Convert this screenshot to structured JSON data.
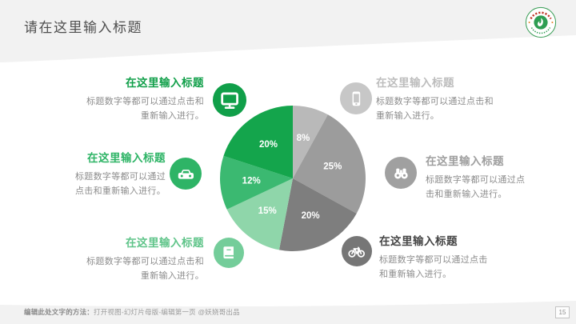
{
  "slide": {
    "title": "请在这里输入标题",
    "page_number": "15"
  },
  "footer": {
    "method_label": "编辑此处文字的方法：",
    "instructions": "打开视图-幻灯片母版-编辑第一页 @妖娆哥出品"
  },
  "theme": {
    "header_band_color": "#f2f2f2",
    "accent_green": "#14a54c",
    "body_text_color": "#8c8c8c"
  },
  "left_items": [
    {
      "title": "在这里输入标题",
      "line1": "标题数字等都可以通过点击和",
      "line2": "重新输入进行。",
      "icon": "monitor-icon",
      "title_color": "#109f49",
      "icon_color": "#109f49"
    },
    {
      "title": "在这里输入标题",
      "line1": "标题数字等都可以通过",
      "line2": "点击和重新输入进行。",
      "icon": "car-icon",
      "title_color": "#2eb466",
      "icon_color": "#2eb466"
    },
    {
      "title": "在这里输入标题",
      "line1": "标题数字等都可以通过点击和",
      "line2": "重新输入进行。",
      "icon": "book-icon",
      "title_color": "#5fc489",
      "icon_color": "#74cd9a"
    }
  ],
  "right_items": [
    {
      "title": "在这里输入标题",
      "line1": "标题数字等都可以通过点击和",
      "line2": "重新输入进行。",
      "icon": "smartphone-icon",
      "title_color": "#bdbdbd",
      "icon_color": "#c7c7c7"
    },
    {
      "title": "在这里输入标题",
      "line1": "标题数字等都可以通过点",
      "line2": "击和重新输入进行。",
      "icon": "binoculars-icon",
      "title_color": "#9e9e9e",
      "icon_color": "#a0a0a0"
    },
    {
      "title": "在这里输入标题",
      "line1": "标题数字等都可以通过点击",
      "line2": "和重新输入进行。",
      "icon": "bicycle-icon",
      "title_color": "#454545",
      "icon_color": "#767676"
    }
  ],
  "chart_data": {
    "type": "pie",
    "title": "",
    "direction": "clockwise",
    "start_angle_deg": 0,
    "label_color": "#ffffff",
    "slices": [
      {
        "label": "8%",
        "value": 8,
        "color": "#b9b9b9"
      },
      {
        "label": "25%",
        "value": 25,
        "color": "#9c9c9c"
      },
      {
        "label": "20%",
        "value": 20,
        "color": "#7e7e7e"
      },
      {
        "label": "15%",
        "value": 15,
        "color": "#8fd6aa"
      },
      {
        "label": "12%",
        "value": 12,
        "color": "#3bb971"
      },
      {
        "label": "20%",
        "value": 20,
        "color": "#14a54c"
      }
    ]
  }
}
